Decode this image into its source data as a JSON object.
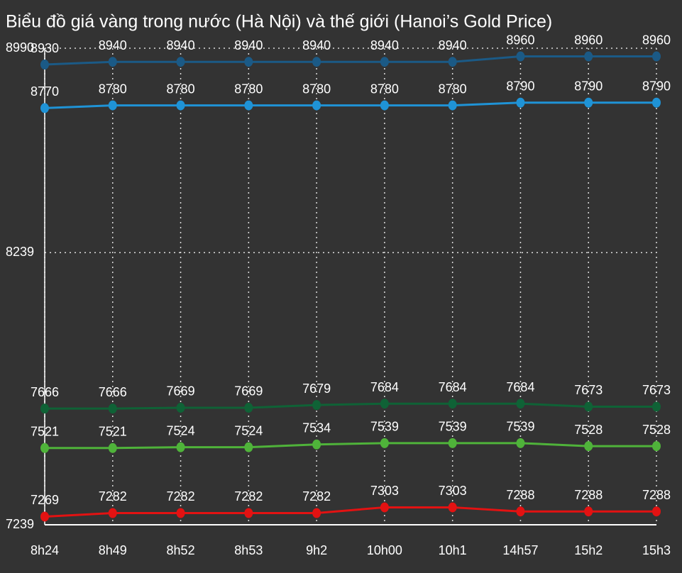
{
  "chart_data": {
    "type": "line",
    "title": "Biểu đồ giá vàng trong nước (Hà Nội) và thế giới (Hanoi’s Gold Price)",
    "categories": [
      "8h24",
      "8h49",
      "8h52",
      "8h53",
      "9h2",
      "10h00",
      "10h1",
      "14h57",
      "15h2",
      "15h3"
    ],
    "series": [
      {
        "color": "#1b5a86",
        "values": [
          8930,
          8940,
          8940,
          8940,
          8940,
          8940,
          8940,
          8960,
          8960,
          8960
        ]
      },
      {
        "color": "#1f93d6",
        "values": [
          8770,
          8780,
          8780,
          8780,
          8780,
          8780,
          8780,
          8790,
          8790,
          8790
        ]
      },
      {
        "color": "#0f6236",
        "values": [
          7666,
          7666,
          7669,
          7669,
          7679,
          7684,
          7684,
          7684,
          7673,
          7673
        ]
      },
      {
        "color": "#4fb33a",
        "values": [
          7521,
          7521,
          7524,
          7524,
          7534,
          7539,
          7539,
          7539,
          7528,
          7528
        ]
      },
      {
        "color": "#e31212",
        "values": [
          7269,
          7282,
          7282,
          7282,
          7282,
          7303,
          7303,
          7288,
          7288,
          7288
        ]
      }
    ],
    "ylim": [
      7239,
      8990
    ],
    "yticks": [
      7239,
      8239,
      8990
    ],
    "grid": true
  }
}
